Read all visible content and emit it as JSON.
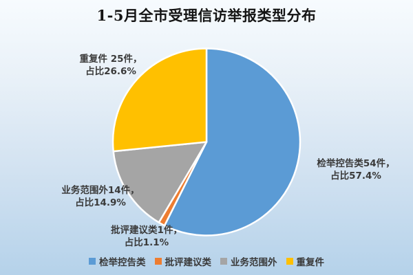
{
  "title": "1-5月全市受理信访举报类型分布",
  "chart_data": {
    "type": "pie",
    "title": "1-5月全市受理信访举报类型分布",
    "categories": [
      "检举控告类",
      "批评建议类",
      "业务范围外",
      "重复件"
    ],
    "values": [
      54,
      1,
      14,
      25
    ],
    "percents": [
      57.4,
      1.1,
      14.9,
      26.6
    ],
    "colors": [
      "#5b9bd5",
      "#ed7d31",
      "#a5a5a5",
      "#ffc000"
    ],
    "start_angle_deg": 0,
    "direction": "clockwise",
    "legend_position": "bottom",
    "slice_border_color": "#ffffff",
    "background_gradient": [
      "#f7fbfe",
      "#b5d2ea"
    ],
    "point_labels": [
      {
        "line1": "检举控告类54件，",
        "line2": "占比57.4%"
      },
      {
        "line1": "批评建议类1件，",
        "line2": "占比1.1%"
      },
      {
        "line1": "业务范围外14件，",
        "line2": "占比14.9%"
      },
      {
        "line1": "重复件 25件，",
        "line2": "占比26.6%"
      }
    ]
  }
}
